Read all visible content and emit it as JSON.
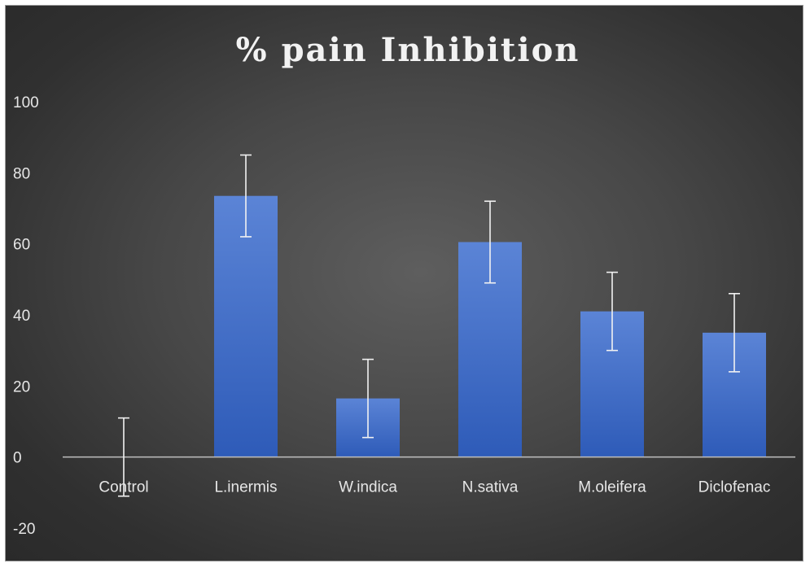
{
  "chart_data": {
    "type": "bar",
    "title": "% pain Inhibition",
    "xlabel": "",
    "ylabel": "",
    "categories": [
      "Control",
      "L.inermis",
      "W.indica",
      "N.sativa",
      "M.oleifera",
      "Diclofenac"
    ],
    "values": [
      0,
      73.5,
      16.5,
      60.5,
      41,
      35
    ],
    "error": [
      11,
      11.5,
      11,
      11.5,
      11,
      11
    ],
    "ylim": [
      -20,
      100
    ],
    "yticks": [
      -20,
      0,
      20,
      40,
      60,
      80,
      100
    ],
    "ytick_labels": [
      "-20",
      "0",
      "20",
      "40",
      "60",
      "80",
      "100"
    ],
    "grid": false,
    "legend": "none",
    "colors": {
      "bar_top": "#5b84d6",
      "bar_bottom": "#2e5bb8",
      "error_bar": "#f2f2f2",
      "axis_line": "#bfbfbf"
    }
  }
}
